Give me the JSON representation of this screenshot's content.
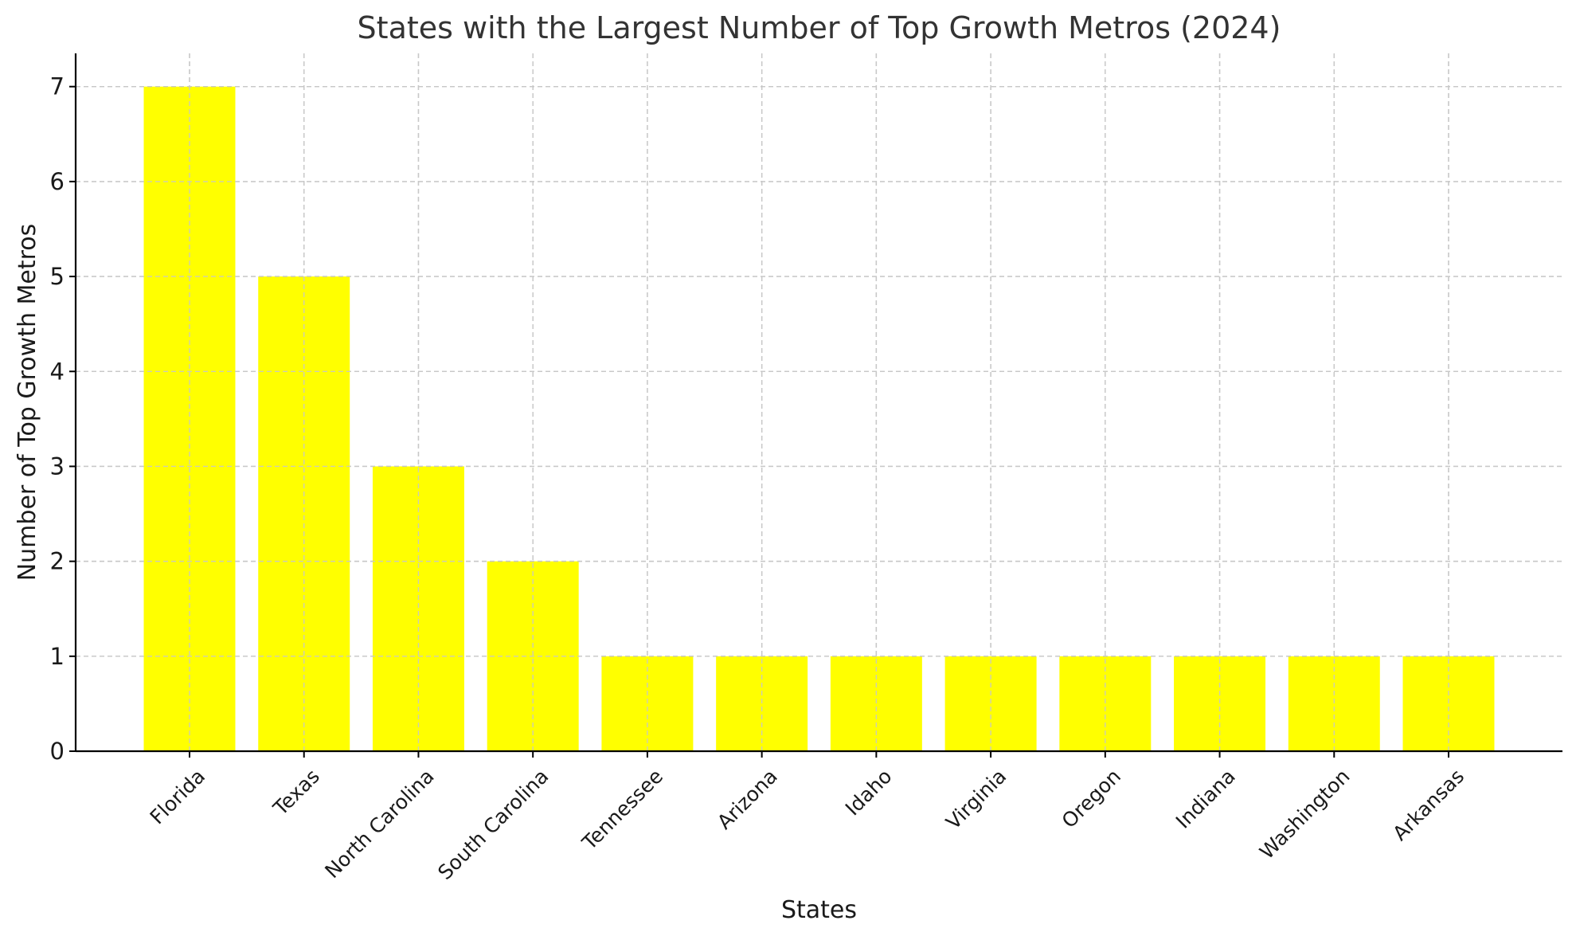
{
  "chart_data": {
    "type": "bar",
    "title": "States with the Largest Number of Top Growth Metros (2024)",
    "xlabel": "States",
    "ylabel": "Number of Top Growth Metros",
    "categories": [
      "Florida",
      "Texas",
      "North Carolina",
      "South Carolina",
      "Tennessee",
      "Arizona",
      "Idaho",
      "Virginia",
      "Oregon",
      "Indiana",
      "Washington",
      "Arkansas"
    ],
    "values": [
      7,
      5,
      3,
      2,
      1,
      1,
      1,
      1,
      1,
      1,
      1,
      1
    ],
    "ylim": [
      0,
      7.35
    ],
    "yticks": [
      0,
      1,
      2,
      3,
      4,
      5,
      6,
      7
    ],
    "grid": true,
    "bar_color": "#ffff00"
  }
}
